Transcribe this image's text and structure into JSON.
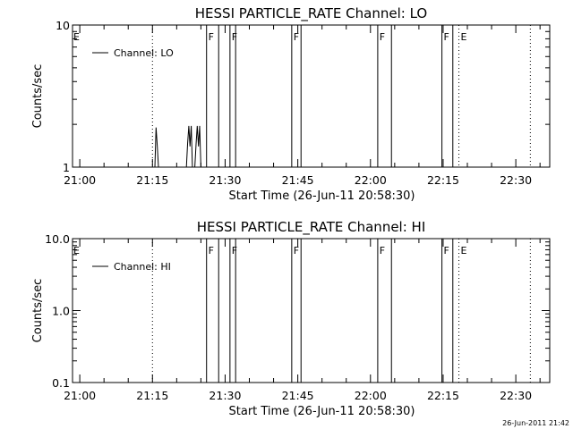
{
  "footer": {
    "timestamp": "26-Jun-2011 21:42"
  },
  "chart_data": [
    {
      "type": "line",
      "title": "HESSI PARTICLE_RATE Channel: LO",
      "xlabel": "Start Time (26-Jun-11 20:58:30)",
      "ylabel": "Counts/sec",
      "yscale": "log",
      "ylim": [
        1,
        10
      ],
      "y_tick_labels": [
        "1",
        "10"
      ],
      "xlim": [
        "20:58:30",
        "22:37:00"
      ],
      "x_tick_labels": [
        "21:00",
        "21:15",
        "21:30",
        "21:45",
        "22:00",
        "22:15",
        "22:30"
      ],
      "legend": {
        "position": "top-left",
        "entries": [
          "Channel: LO"
        ]
      },
      "series": [
        {
          "name": "Channel: LO",
          "points": [
            [
              "21:15:30",
              1
            ],
            [
              "21:15:45",
              1.9
            ],
            [
              "21:16:00",
              1.4
            ],
            [
              "21:16:15",
              1
            ],
            [
              "21:22:00",
              1
            ],
            [
              "21:22:15",
              1.45
            ],
            [
              "21:22:30",
              1.95
            ],
            [
              "21:22:45",
              1.4
            ],
            [
              "21:23:00",
              1.95
            ],
            [
              "21:23:15",
              1
            ],
            [
              "21:23:45",
              1
            ],
            [
              "21:24:00",
              1.45
            ],
            [
              "21:24:15",
              1.95
            ],
            [
              "21:24:30",
              1.4
            ],
            [
              "21:24:45",
              1.95
            ],
            [
              "21:25:00",
              1
            ]
          ]
        }
      ],
      "vertical_lines": [
        {
          "time": "21:15:00",
          "style": "dotted"
        },
        {
          "time": "21:26:10",
          "style": "solid"
        },
        {
          "time": "21:28:40",
          "style": "solid"
        },
        {
          "time": "21:31:00",
          "style": "solid"
        },
        {
          "time": "21:32:10",
          "style": "solid"
        },
        {
          "time": "21:43:45",
          "style": "solid"
        },
        {
          "time": "21:45:40",
          "style": "solid"
        },
        {
          "time": "22:01:30",
          "style": "solid"
        },
        {
          "time": "22:04:20",
          "style": "solid"
        },
        {
          "time": "22:14:45",
          "style": "solid"
        },
        {
          "time": "22:17:00",
          "style": "solid"
        },
        {
          "time": "22:18:15",
          "style": "dotted"
        },
        {
          "time": "22:33:00",
          "style": "dotted"
        }
      ],
      "flags": [
        {
          "label": "E",
          "time": "20:58:30"
        },
        {
          "label": "F",
          "time": "21:26:20"
        },
        {
          "label": "F",
          "time": "21:31:10"
        },
        {
          "label": "F",
          "time": "21:43:55"
        },
        {
          "label": "F",
          "time": "22:01:40"
        },
        {
          "label": "F",
          "time": "22:14:55"
        },
        {
          "label": "E",
          "time": "22:18:25"
        }
      ]
    },
    {
      "type": "line",
      "title": "HESSI PARTICLE_RATE Channel: HI",
      "xlabel": "Start Time (26-Jun-11 20:58:30)",
      "ylabel": "Counts/sec",
      "yscale": "log",
      "ylim": [
        0.1,
        10
      ],
      "y_tick_labels": [
        "0.1",
        "1.0",
        "10.0"
      ],
      "xlim": [
        "20:58:30",
        "22:37:00"
      ],
      "x_tick_labels": [
        "21:00",
        "21:15",
        "21:30",
        "21:45",
        "22:00",
        "22:15",
        "22:30"
      ],
      "legend": {
        "position": "top-left",
        "entries": [
          "Channel: HI"
        ]
      },
      "series": [
        {
          "name": "Channel: HI",
          "points": []
        }
      ],
      "vertical_lines": [
        {
          "time": "21:15:00",
          "style": "dotted"
        },
        {
          "time": "21:26:10",
          "style": "solid"
        },
        {
          "time": "21:28:40",
          "style": "solid"
        },
        {
          "time": "21:31:00",
          "style": "solid"
        },
        {
          "time": "21:32:10",
          "style": "solid"
        },
        {
          "time": "21:43:45",
          "style": "solid"
        },
        {
          "time": "21:45:40",
          "style": "solid"
        },
        {
          "time": "22:01:30",
          "style": "solid"
        },
        {
          "time": "22:04:20",
          "style": "solid"
        },
        {
          "time": "22:14:45",
          "style": "solid"
        },
        {
          "time": "22:17:00",
          "style": "solid"
        },
        {
          "time": "22:18:15",
          "style": "dotted"
        },
        {
          "time": "22:33:00",
          "style": "dotted"
        }
      ],
      "flags": [
        {
          "label": "E",
          "time": "20:58:30"
        },
        {
          "label": "F",
          "time": "21:26:20"
        },
        {
          "label": "F",
          "time": "21:31:10"
        },
        {
          "label": "F",
          "time": "21:43:55"
        },
        {
          "label": "F",
          "time": "22:01:40"
        },
        {
          "label": "F",
          "time": "22:14:55"
        },
        {
          "label": "E",
          "time": "22:18:25"
        }
      ]
    }
  ]
}
